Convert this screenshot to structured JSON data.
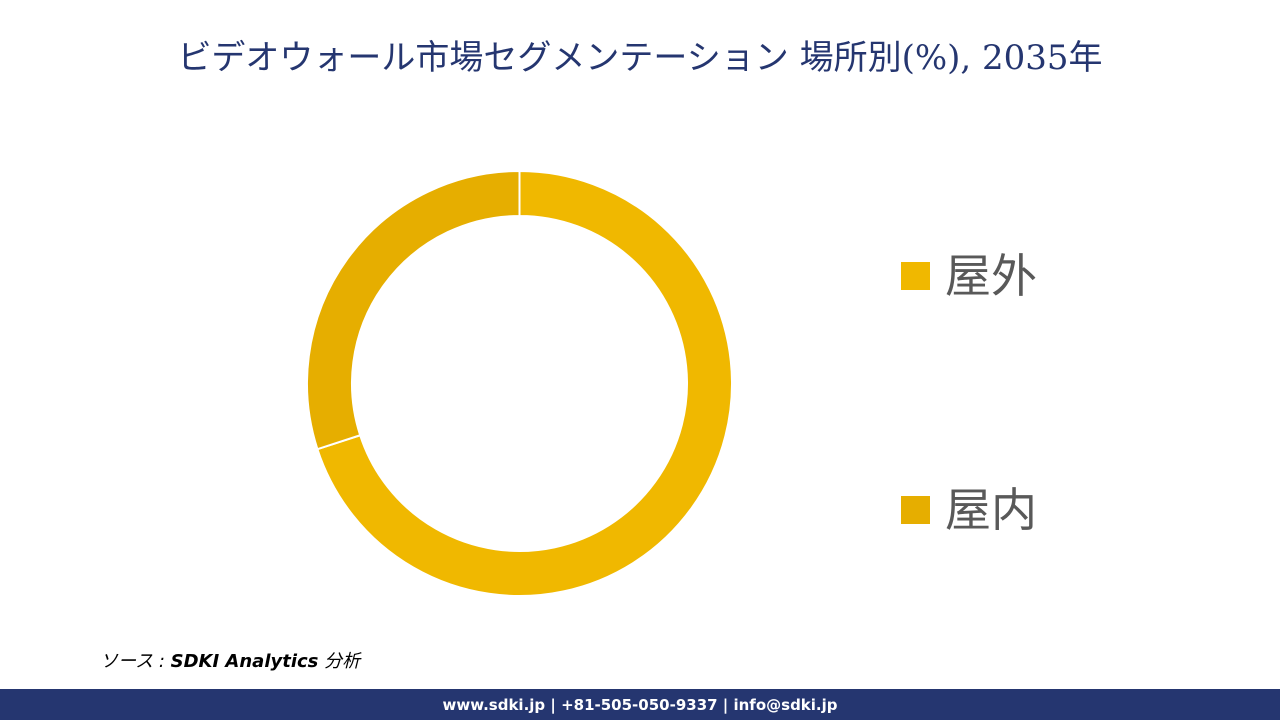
{
  "header": {
    "title": "ビデオウォール市場セグメンテーション  場所別(%), 2035年"
  },
  "chart_data": {
    "type": "pie",
    "subtype": "donut",
    "title": "ビデオウォール市場セグメンテーション  場所別(%), 2035年",
    "categories": [
      "屋外",
      "屋内"
    ],
    "values": [
      70,
      30
    ],
    "unit": "%",
    "colors": [
      "#F0B800",
      "#E6AE00"
    ],
    "start_angle_deg": 0,
    "direction": "clockwise",
    "legend_position": "right",
    "data_labels": false
  },
  "legend": {
    "items": [
      {
        "label": "屋外",
        "color": "#F0B800"
      },
      {
        "label": "屋内",
        "color": "#E6AE00"
      }
    ]
  },
  "source": {
    "prefix": "ソース : ",
    "brand": "SDKI Analytics",
    "suffix": " 分析"
  },
  "footer": {
    "text": "www.sdki.jp | +81-505-050-9337 | info@sdki.jp",
    "background": "#253670"
  }
}
